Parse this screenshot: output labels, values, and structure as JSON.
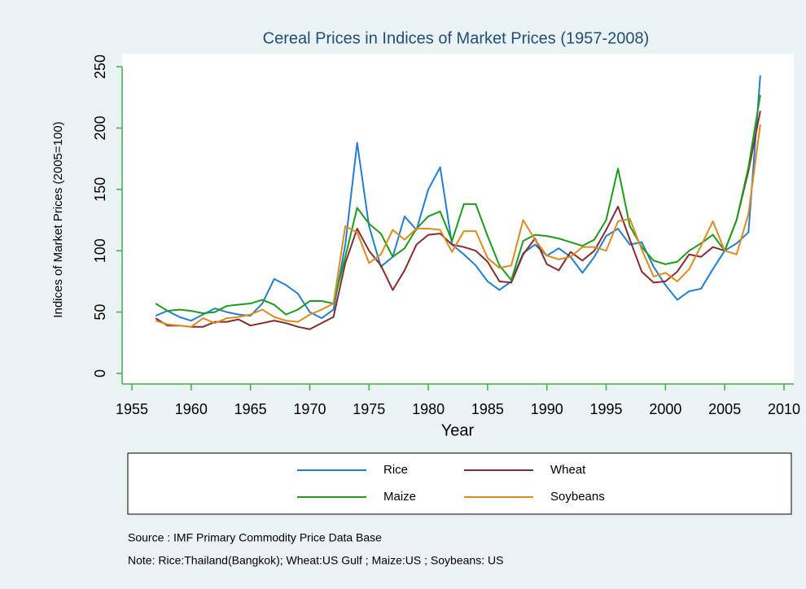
{
  "chart_data": {
    "type": "line",
    "title": "Cereal Prices in Indices of Market Prices (1957-2008)",
    "x_label": "Year",
    "y_label": "Indices of Market Prices (2005=100)",
    "source": "Source : IMF Primary Commodity Price Data Base",
    "note": "Note: Rice:Thailand(Bangkok); Wheat:US Gulf ; Maize:US ; Soybeans: US",
    "x": [
      1957,
      1958,
      1959,
      1960,
      1961,
      1962,
      1963,
      1964,
      1965,
      1966,
      1967,
      1968,
      1969,
      1970,
      1971,
      1972,
      1973,
      1974,
      1975,
      1976,
      1977,
      1978,
      1979,
      1980,
      1981,
      1982,
      1983,
      1984,
      1985,
      1986,
      1987,
      1988,
      1989,
      1990,
      1991,
      1992,
      1993,
      1994,
      1995,
      1996,
      1997,
      1998,
      1999,
      2000,
      2001,
      2002,
      2003,
      2004,
      2005,
      2006,
      2007,
      2008
    ],
    "series": [
      {
        "name": "Rice",
        "color": "#1f7fd8",
        "values": [
          47,
          51,
          46,
          43,
          48,
          53,
          50,
          48,
          47,
          57,
          77,
          72,
          65,
          50,
          45,
          52,
          105,
          188,
          120,
          87,
          95,
          128,
          117,
          150,
          168,
          105,
          97,
          88,
          75,
          68,
          75,
          98,
          105,
          96,
          102,
          95,
          82,
          95,
          112,
          118,
          105,
          107,
          87,
          72,
          60,
          67,
          69,
          85,
          100,
          106,
          115,
          243
        ]
      },
      {
        "name": "Wheat",
        "color": "#8b2a2e",
        "values": [
          45,
          39,
          39,
          38,
          38,
          42,
          42,
          44,
          39,
          41,
          43,
          41,
          38,
          36,
          41,
          46,
          90,
          118,
          100,
          88,
          68,
          84,
          105,
          113,
          114,
          105,
          103,
          100,
          91,
          75,
          74,
          97,
          110,
          89,
          84,
          99,
          92,
          100,
          117,
          136,
          109,
          83,
          74,
          75,
          83,
          97,
          95,
          103,
          100,
          125,
          165,
          214
        ]
      },
      {
        "name": "Maize",
        "color": "#1a9e1a",
        "values": [
          57,
          51,
          52,
          51,
          49,
          50,
          55,
          56,
          57,
          60,
          56,
          48,
          52,
          59,
          59,
          57,
          95,
          135,
          122,
          114,
          95,
          102,
          118,
          128,
          132,
          108,
          138,
          138,
          112,
          88,
          76,
          108,
          113,
          112,
          110,
          107,
          104,
          109,
          125,
          167,
          120,
          103,
          92,
          89,
          91,
          100,
          106,
          113,
          100,
          125,
          168,
          227
        ]
      },
      {
        "name": "Soybeans",
        "color": "#e08a1c",
        "values": [
          43,
          40,
          39,
          38,
          45,
          41,
          45,
          46,
          48,
          52,
          46,
          43,
          42,
          48,
          52,
          57,
          120,
          115,
          90,
          97,
          117,
          109,
          118,
          118,
          117,
          99,
          116,
          116,
          94,
          86,
          88,
          125,
          109,
          96,
          93,
          95,
          103,
          103,
          100,
          124,
          126,
          101,
          79,
          82,
          75,
          85,
          104,
          124,
          100,
          97,
          130,
          203
        ]
      }
    ],
    "xlim": [
      1955,
      2010
    ],
    "xticks": [
      1955,
      1960,
      1965,
      1970,
      1975,
      1980,
      1985,
      1990,
      1995,
      2000,
      2005,
      2010
    ],
    "ylim": [
      0,
      250
    ],
    "yticks": [
      0,
      50,
      100,
      150,
      200,
      250
    ],
    "grid": false
  }
}
